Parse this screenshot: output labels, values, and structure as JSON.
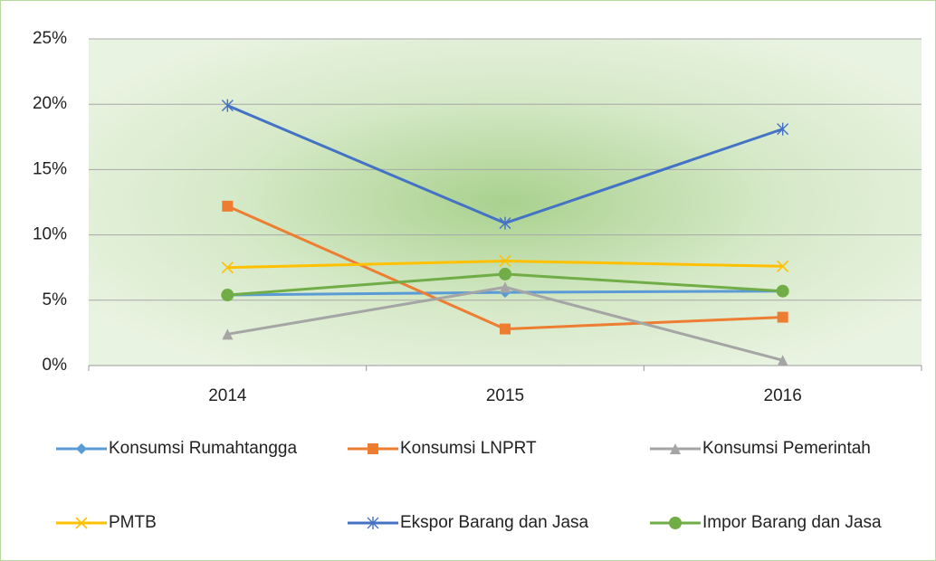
{
  "chart_data": {
    "type": "line",
    "categories": [
      "2014",
      "2015",
      "2016"
    ],
    "series": [
      {
        "name": "Konsumsi Rumahtangga",
        "color": "#5b9bd5",
        "marker": "diamond",
        "values": [
          5.4,
          5.6,
          5.7
        ]
      },
      {
        "name": "Konsumsi LNPRT",
        "color": "#ed7d31",
        "marker": "square",
        "values": [
          12.2,
          2.8,
          3.7
        ]
      },
      {
        "name": "Konsumsi Pemerintah",
        "color": "#a5a5a5",
        "marker": "triangle",
        "values": [
          2.4,
          6.0,
          0.4
        ]
      },
      {
        "name": "PMTB",
        "color": "#ffc000",
        "marker": "x",
        "values": [
          7.5,
          8.0,
          7.6
        ]
      },
      {
        "name": "Ekspor Barang dan Jasa",
        "color": "#4472c4",
        "marker": "asterisk",
        "values": [
          19.9,
          10.9,
          18.1
        ]
      },
      {
        "name": "Impor Barang dan Jasa",
        "color": "#70ad47",
        "marker": "circle",
        "values": [
          5.4,
          7.0,
          5.7
        ]
      }
    ],
    "ylim": [
      0,
      25
    ],
    "yticks": [
      {
        "value": 0,
        "label": "0%"
      },
      {
        "value": 5,
        "label": "5%"
      },
      {
        "value": 10,
        "label": "10%"
      },
      {
        "value": 15,
        "label": "15%"
      },
      {
        "value": 20,
        "label": "20%"
      },
      {
        "value": 25,
        "label": "25%"
      }
    ],
    "grid": true,
    "legend": "bottom"
  }
}
